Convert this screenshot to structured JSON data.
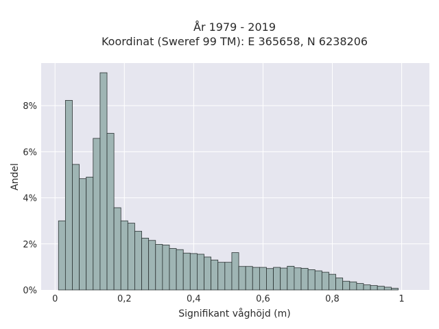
{
  "chart_data": {
    "type": "bar",
    "title_line1": "År 1979 - 2019",
    "title_line2": "Koordinat (Sweref 99 TM): E 365658, N 6238206",
    "xlabel": "Signifikant våghöjd (m)",
    "ylabel": "Andel",
    "xlim": [
      -0.04,
      1.08
    ],
    "ylim": [
      0,
      0.0985
    ],
    "x_ticks": [
      {
        "value": 0,
        "label": "0"
      },
      {
        "value": 0.2,
        "label": "0,2"
      },
      {
        "value": 0.4,
        "label": "0,4"
      },
      {
        "value": 0.6,
        "label": "0,6"
      },
      {
        "value": 0.8,
        "label": "0,8"
      },
      {
        "value": 1.0,
        "label": "1"
      }
    ],
    "y_ticks": [
      {
        "value": 0,
        "label": "0%"
      },
      {
        "value": 0.02,
        "label": "2%"
      },
      {
        "value": 0.04,
        "label": "4%"
      },
      {
        "value": 0.06,
        "label": "6%"
      },
      {
        "value": 0.08,
        "label": "8%"
      }
    ],
    "grid": true,
    "bin_start": 0.01,
    "bin_width": 0.02,
    "values": [
      0.03,
      0.0823,
      0.0545,
      0.0483,
      0.049,
      0.0658,
      0.0943,
      0.068,
      0.0357,
      0.03,
      0.029,
      0.0255,
      0.0225,
      0.0215,
      0.0198,
      0.0195,
      0.018,
      0.0175,
      0.016,
      0.0158,
      0.0155,
      0.0143,
      0.013,
      0.012,
      0.012,
      0.0162,
      0.0102,
      0.0102,
      0.0098,
      0.0098,
      0.0093,
      0.0098,
      0.0095,
      0.0103,
      0.0096,
      0.0094,
      0.0088,
      0.0083,
      0.0077,
      0.0068,
      0.0052,
      0.0038,
      0.0035,
      0.0028,
      0.0022,
      0.0019,
      0.0016,
      0.0012,
      0.0007
    ],
    "colors": {
      "plot_bg": "#e6e6ef",
      "grid": "#ffffff",
      "bar_fill": "#9fb5b4",
      "bar_stroke": "#2a3232",
      "text": "#2a2a2a"
    }
  }
}
